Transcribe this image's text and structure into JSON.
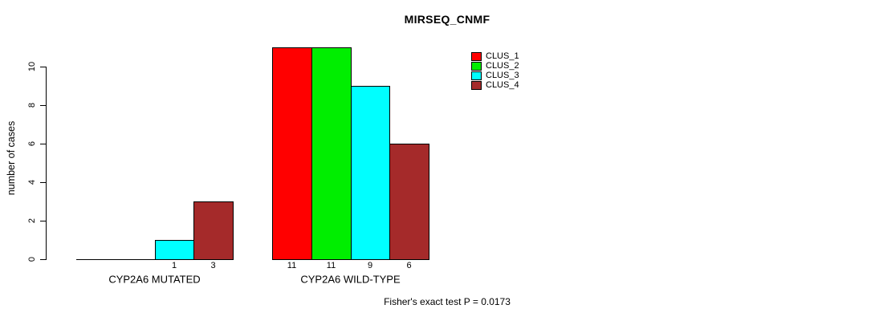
{
  "title": "MIRSEQ_CNMF",
  "footer": "Fisher's exact test P = 0.0173",
  "y_axis": {
    "label": "number of cases",
    "ticks": [
      0,
      2,
      4,
      6,
      8,
      10
    ]
  },
  "legend": [
    {
      "label": "CLUS_1",
      "color": "#FF0000"
    },
    {
      "label": "CLUS_2",
      "color": "#00EE00"
    },
    {
      "label": "CLUS_3",
      "color": "#00FFFF"
    },
    {
      "label": "CLUS_4",
      "color": "#A52A2A"
    }
  ],
  "chart_data": {
    "type": "bar",
    "title": "MIRSEQ_CNMF",
    "categories": [
      "CYP2A6 MUTATED",
      "CYP2A6 WILD-TYPE"
    ],
    "series": [
      {
        "name": "CLUS_1",
        "color": "#FF0000",
        "values": [
          0,
          11
        ]
      },
      {
        "name": "CLUS_2",
        "color": "#00EE00",
        "values": [
          0,
          11
        ]
      },
      {
        "name": "CLUS_3",
        "color": "#00FFFF",
        "values": [
          1,
          9
        ]
      },
      {
        "name": "CLUS_4",
        "color": "#A52A2A",
        "values": [
          3,
          6
        ]
      }
    ],
    "bar_value_labels_shown": true,
    "xlabel": "",
    "ylabel": "number of cases",
    "ylim": [
      0,
      10
    ],
    "yticks": [
      0,
      2,
      4,
      6,
      8,
      10
    ],
    "grid": false,
    "legend_position": "top-right",
    "annotation": "Fisher's exact test P = 0.0173"
  }
}
